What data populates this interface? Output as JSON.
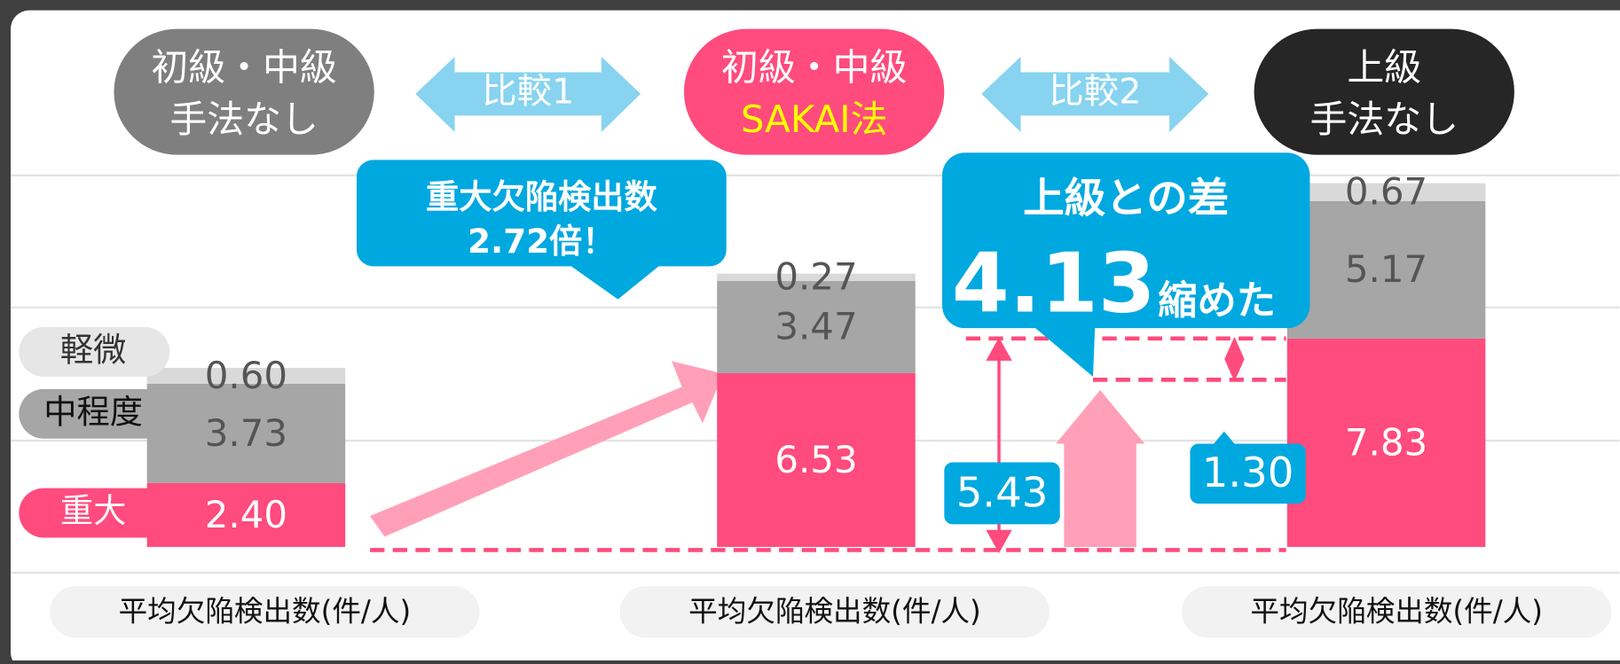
{
  "chart_data": {
    "type": "bar",
    "stacked": true,
    "categories": [
      [
        "初級・中級",
        "手法なし"
      ],
      [
        "初級・中級",
        "SAKAI法"
      ],
      [
        "上級",
        "手法なし"
      ]
    ],
    "category_colors": [
      "#7f7f7f",
      "#ff4b7d",
      "#262626"
    ],
    "series": [
      {
        "name": "重大",
        "color": "#ff4b7d",
        "values": [
          2.4,
          6.53,
          7.83
        ],
        "value_labels": [
          "2.40",
          "6.53",
          "7.83"
        ]
      },
      {
        "name": "中程度",
        "color": "#a6a6a6",
        "values": [
          3.73,
          3.47,
          5.17
        ],
        "value_labels": [
          "3.73",
          "3.47",
          "5.17"
        ]
      },
      {
        "name": "軽微",
        "color": "#d9d9d9",
        "values": [
          0.6,
          0.27,
          0.67
        ],
        "value_labels": [
          "0.60",
          "0.27",
          "0.67"
        ]
      }
    ],
    "ylim": [
      0,
      14
    ],
    "x_labels": [
      "平均欠陥検出数(件/人)",
      "平均欠陥検出数(件/人)",
      "平均欠陥検出数(件/人)"
    ],
    "comparisons": [
      "比較1",
      "比較2"
    ],
    "callout1": [
      "重大欠陥検出数",
      "2.72倍！"
    ],
    "callout2": {
      "title": "上級との差",
      "value": "4.13",
      "suffix": "縮めた"
    },
    "gaps": [
      "5.43",
      "1.30"
    ]
  }
}
